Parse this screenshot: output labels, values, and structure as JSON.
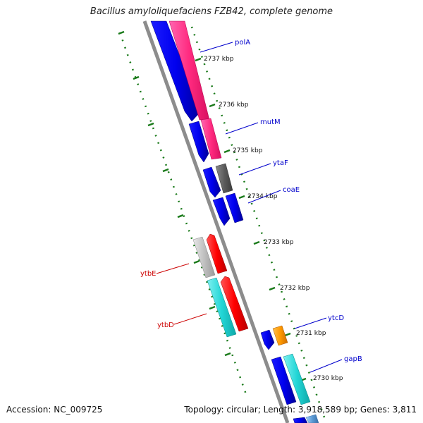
{
  "title": "Bacillus amyloliquefaciens FZB42, complete genome",
  "footer": {
    "accession": "Accession: NC_009725",
    "topology": "Topology: circular; Length: 3,918,589 bp; Genes: 3,811"
  },
  "colors": {
    "backbone": "#888888",
    "tick": "#1a7a1a",
    "forward_gene": "#0000ee",
    "reverse_gene": "#ff2a7f",
    "label_forward": "#0000cc",
    "label_reverse": "#cc0000"
  },
  "tick_labels": [
    "2737 kbp",
    "2736 kbp",
    "2735 kbp",
    "2734 kbp",
    "2733 kbp",
    "2732 kbp",
    "2731 kbp",
    "2730 kbp"
  ],
  "gene_labels": [
    {
      "name": "polA",
      "strand": "forward"
    },
    {
      "name": "mutM",
      "strand": "forward"
    },
    {
      "name": "ytaF",
      "strand": "forward"
    },
    {
      "name": "coaE",
      "strand": "forward"
    },
    {
      "name": "ytbE",
      "strand": "reverse"
    },
    {
      "name": "ytbD",
      "strand": "reverse"
    },
    {
      "name": "ytcD",
      "strand": "forward"
    },
    {
      "name": "gapB",
      "strand": "forward"
    }
  ]
}
